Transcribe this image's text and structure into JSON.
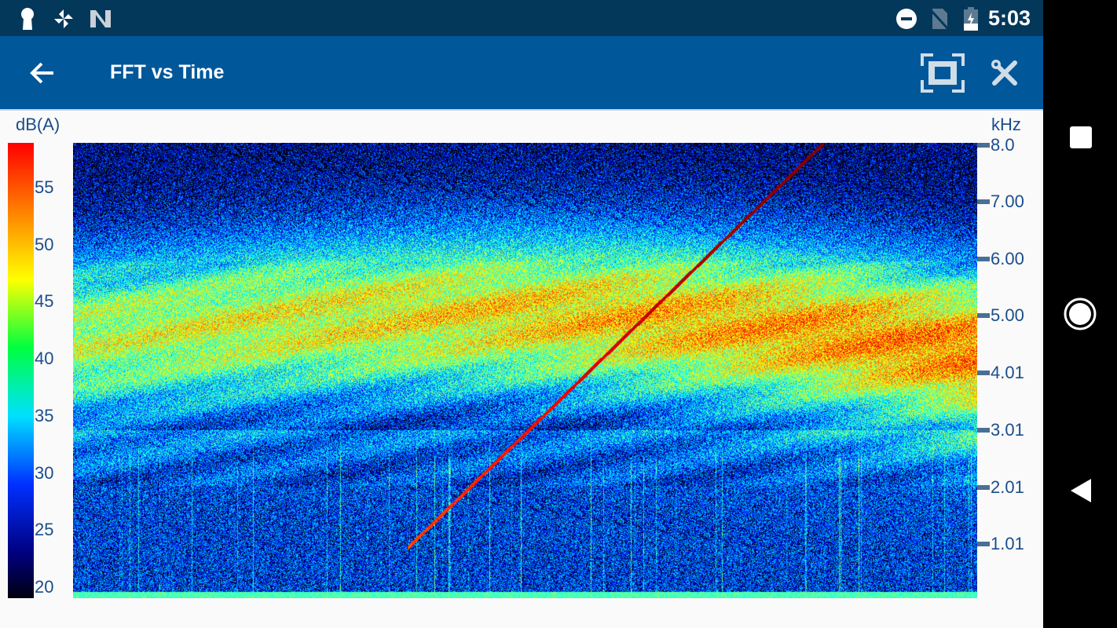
{
  "status_bar": {
    "time": "5:03",
    "left_icons": [
      "keyhole-icon",
      "pinwheel-icon",
      "n-logo-icon"
    ],
    "right_icons": [
      "do-not-disturb-icon",
      "no-sim-icon",
      "battery-charging-icon"
    ]
  },
  "app_bar": {
    "title": "FFT vs Time",
    "back_icon": "arrow-left-icon",
    "actions": [
      "fullscreen-icon",
      "tools-icon"
    ]
  },
  "nav_bar": {
    "buttons": [
      "recents-square-icon",
      "home-circle-icon",
      "back-triangle-icon"
    ]
  },
  "chart_data": {
    "type": "heatmap",
    "colorbar": {
      "label": "dB(A)",
      "ticks": [
        "55",
        "50",
        "45",
        "40",
        "35",
        "30",
        "25",
        "20"
      ],
      "range": [
        19,
        59
      ],
      "colormap": "jet"
    },
    "yaxis": {
      "label": "kHz",
      "ticks": [
        "8.0",
        "7.00",
        "6.00",
        "5.00",
        "4.01",
        "3.01",
        "2.01",
        "1.01"
      ],
      "range": [
        0,
        8.1
      ],
      "position": "right"
    },
    "xaxis": {
      "label": "",
      "ticks": []
    },
    "features": {
      "sweep_line_khz": [
        0.9,
        8.1
      ],
      "energy_band_khz": [
        2.5,
        6.5
      ],
      "peak_db": 58
    }
  }
}
